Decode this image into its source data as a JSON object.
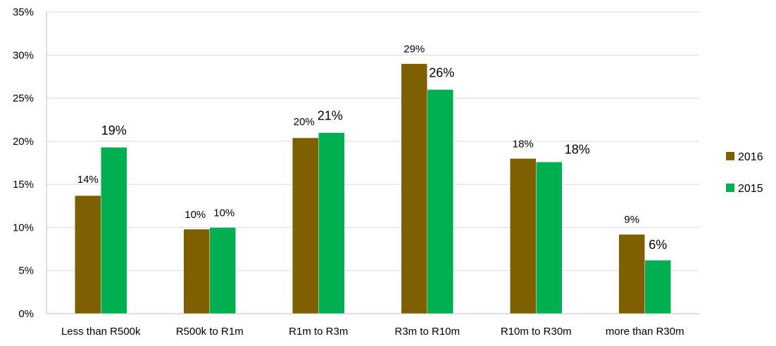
{
  "chart_data": {
    "type": "bar",
    "title": "",
    "xlabel": "",
    "ylabel": "",
    "categories": [
      "Less than R500k",
      "R500k to R1m",
      "R1m to R3m",
      "R3m to R10m",
      "R10m to R30m",
      "more than R30m"
    ],
    "series": [
      {
        "name": "2016",
        "color": "#7f6000",
        "values": [
          13.7,
          9.8,
          20.4,
          29.0,
          18.0,
          9.2
        ],
        "labels": [
          "14%",
          "10%",
          "20%",
          "29%",
          "18%",
          "9%"
        ]
      },
      {
        "name": "2015",
        "color": "#00b050",
        "values": [
          19.3,
          10.0,
          21.0,
          26.0,
          17.6,
          6.2
        ],
        "labels": [
          "19%",
          "10%",
          "21%",
          "26%",
          "18%",
          "6%"
        ]
      }
    ],
    "ylim": [
      0,
      35
    ],
    "yticks": [
      "0%",
      "5%",
      "10%",
      "15%",
      "20%",
      "25%",
      "30%",
      "35%"
    ],
    "grid": true,
    "legend_position": "right"
  }
}
